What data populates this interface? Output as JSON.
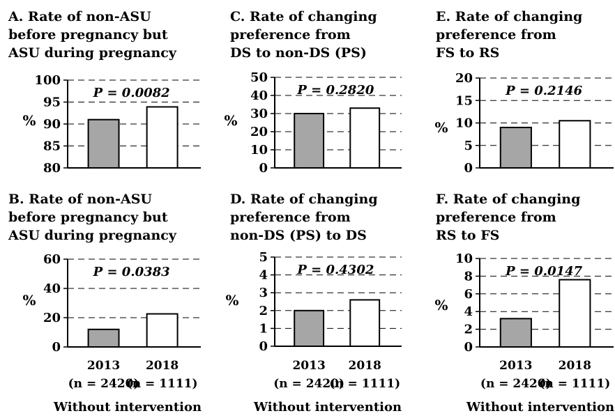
{
  "chart_data": [
    {
      "id": "A",
      "type": "bar",
      "title_lines": [
        "A. Rate of non-ASU",
        "before pregnancy but",
        "ASU during pregnancy"
      ],
      "ylabel": "%",
      "ylim": [
        80,
        100
      ],
      "yticks": [
        80,
        85,
        90,
        95,
        100
      ],
      "annotation": "P = 0.0082",
      "categories": [
        "2013",
        "2018"
      ],
      "values": [
        91.0,
        93.9
      ],
      "colors": [
        "#a6a6a6",
        "#ffffff"
      ]
    },
    {
      "id": "B",
      "type": "bar",
      "title_lines": [
        "B. Rate of non-ASU",
        "before pregnancy but",
        "ASU during pregnancy"
      ],
      "ylabel": "%",
      "ylim": [
        0,
        60
      ],
      "yticks": [
        0,
        20,
        40,
        60
      ],
      "annotation": "P = 0.0383",
      "categories": [
        "2013",
        "2018"
      ],
      "category_sublabels": [
        "(n = 2420)",
        "(n = 1111)"
      ],
      "group_label": "Without intervention",
      "values": [
        12.0,
        22.6
      ],
      "colors": [
        "#a6a6a6",
        "#ffffff"
      ]
    },
    {
      "id": "C",
      "type": "bar",
      "title_lines": [
        "C. Rate of changing",
        "preference from",
        "DS to non-DS (PS)"
      ],
      "ylabel": "%",
      "ylim": [
        0,
        50
      ],
      "yticks": [
        0,
        10,
        20,
        30,
        40,
        50
      ],
      "annotation": "P = 0.2820",
      "categories": [
        "2013",
        "2018"
      ],
      "values": [
        30.0,
        33.0
      ],
      "colors": [
        "#a6a6a6",
        "#ffffff"
      ]
    },
    {
      "id": "D",
      "type": "bar",
      "title_lines": [
        "D. Rate of changing",
        "preference from",
        "non-DS (PS) to DS"
      ],
      "ylabel": "%",
      "ylim": [
        0,
        5
      ],
      "yticks": [
        0,
        1,
        2,
        3,
        4,
        5
      ],
      "annotation": "P = 0.4302",
      "categories": [
        "2013",
        "2018"
      ],
      "category_sublabels": [
        "(n = 2420)",
        "(n = 1111)"
      ],
      "group_label": "Without intervention",
      "values": [
        2.0,
        2.6
      ],
      "colors": [
        "#a6a6a6",
        "#ffffff"
      ]
    },
    {
      "id": "E",
      "type": "bar",
      "title_lines": [
        "E. Rate of changing",
        "preference from",
        "FS to RS"
      ],
      "ylabel": "%",
      "ylim": [
        0,
        20
      ],
      "yticks": [
        0,
        5,
        10,
        15,
        20
      ],
      "annotation": "P = 0.2146",
      "categories": [
        "2013",
        "2018"
      ],
      "values": [
        9.0,
        10.5
      ],
      "colors": [
        "#a6a6a6",
        "#ffffff"
      ]
    },
    {
      "id": "F",
      "type": "bar",
      "title_lines": [
        "F. Rate of changing",
        "preference from",
        "RS to FS"
      ],
      "ylabel": "%",
      "ylim": [
        0,
        10
      ],
      "yticks": [
        0,
        2,
        4,
        6,
        8,
        10
      ],
      "annotation": "P = 0.0147",
      "categories": [
        "2013",
        "2018"
      ],
      "category_sublabels": [
        "(n = 2420)",
        "(n = 1111)"
      ],
      "group_label": "Without intervention",
      "values": [
        3.2,
        7.6
      ],
      "colors": [
        "#a6a6a6",
        "#ffffff"
      ]
    }
  ]
}
